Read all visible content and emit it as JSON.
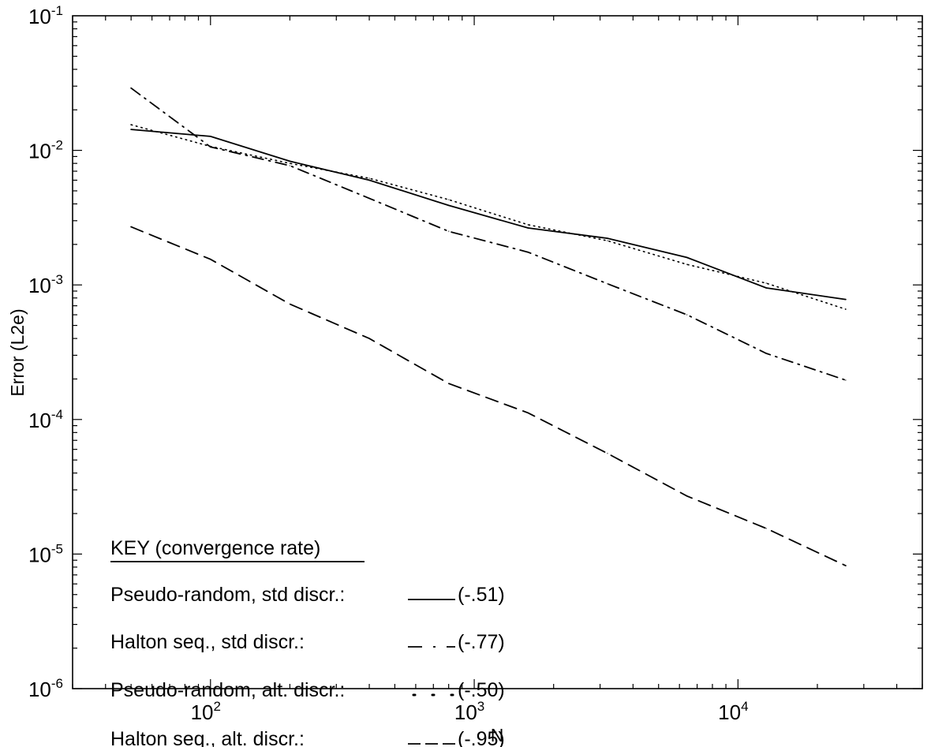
{
  "chart_data": {
    "type": "line",
    "xlabel": "N",
    "ylabel": "Error (L2e)",
    "xscale": "log",
    "yscale": "log",
    "xlim": [
      30,
      50000
    ],
    "ylim": [
      1e-06,
      0.1
    ],
    "grid": false,
    "x_ticks": [
      {
        "base": "10",
        "exp": "2",
        "value": 100
      },
      {
        "base": "10",
        "exp": "3",
        "value": 1000
      },
      {
        "base": "10",
        "exp": "4",
        "value": 10000
      }
    ],
    "y_ticks": [
      {
        "base": "10",
        "exp": "-1",
        "value": 0.1
      },
      {
        "base": "10",
        "exp": "-2",
        "value": 0.01
      },
      {
        "base": "10",
        "exp": "-3",
        "value": 0.001
      },
      {
        "base": "10",
        "exp": "-4",
        "value": 0.0001
      },
      {
        "base": "10",
        "exp": "-5",
        "value": 1e-05
      },
      {
        "base": "10",
        "exp": "-6",
        "value": 1e-06
      }
    ],
    "legend": {
      "title": "KEY (convergence rate)",
      "placement": "bottom-left",
      "entries": [
        {
          "label": "Pseudo-random, std discr.:",
          "rate": "(-.51)",
          "series": 0
        },
        {
          "label": "Halton seq., std discr.:",
          "rate": "(-.77)",
          "series": 1
        },
        {
          "label": "Pseudo-random, alt. discr.:",
          "rate": "(-.50)",
          "series": 2
        },
        {
          "label": "Halton seq., alt. discr.:",
          "rate": "(-.95)",
          "series": 3
        }
      ]
    },
    "series": [
      {
        "key": "pseudo-std",
        "style": "solid",
        "points": [
          [
            50,
            0.0143
          ],
          [
            100,
            0.0127
          ],
          [
            200,
            0.0083
          ],
          [
            400,
            0.006
          ],
          [
            800,
            0.0039
          ],
          [
            1600,
            0.00265
          ],
          [
            3200,
            0.00222
          ],
          [
            6400,
            0.0016
          ],
          [
            12800,
            0.00095
          ],
          [
            25600,
            0.00078
          ]
        ]
      },
      {
        "key": "halton-std",
        "style": "dashdot",
        "points": [
          [
            50,
            0.029
          ],
          [
            100,
            0.0106
          ],
          [
            200,
            0.0077
          ],
          [
            400,
            0.0044
          ],
          [
            800,
            0.0025
          ],
          [
            1600,
            0.00175
          ],
          [
            3200,
            0.00102
          ],
          [
            6400,
            0.0006
          ],
          [
            12800,
            0.00031
          ],
          [
            25600,
            0.000196
          ]
        ]
      },
      {
        "key": "pseudo-alt",
        "style": "dotted",
        "points": [
          [
            50,
            0.0155
          ],
          [
            100,
            0.0107
          ],
          [
            200,
            0.008
          ],
          [
            400,
            0.0062
          ],
          [
            800,
            0.0043
          ],
          [
            1600,
            0.0028
          ],
          [
            3200,
            0.00213
          ],
          [
            6400,
            0.00142
          ],
          [
            12800,
            0.00103
          ],
          [
            25600,
            0.00066
          ]
        ]
      },
      {
        "key": "halton-alt",
        "style": "dashed",
        "points": [
          [
            50,
            0.0027
          ],
          [
            100,
            0.00155
          ],
          [
            200,
            0.00072
          ],
          [
            400,
            0.0004
          ],
          [
            800,
            0.000185
          ],
          [
            1600,
            0.000112
          ],
          [
            3200,
            5.6e-05
          ],
          [
            6400,
            2.7e-05
          ],
          [
            12800,
            1.55e-05
          ],
          [
            25600,
            8.2e-06
          ]
        ]
      }
    ]
  }
}
